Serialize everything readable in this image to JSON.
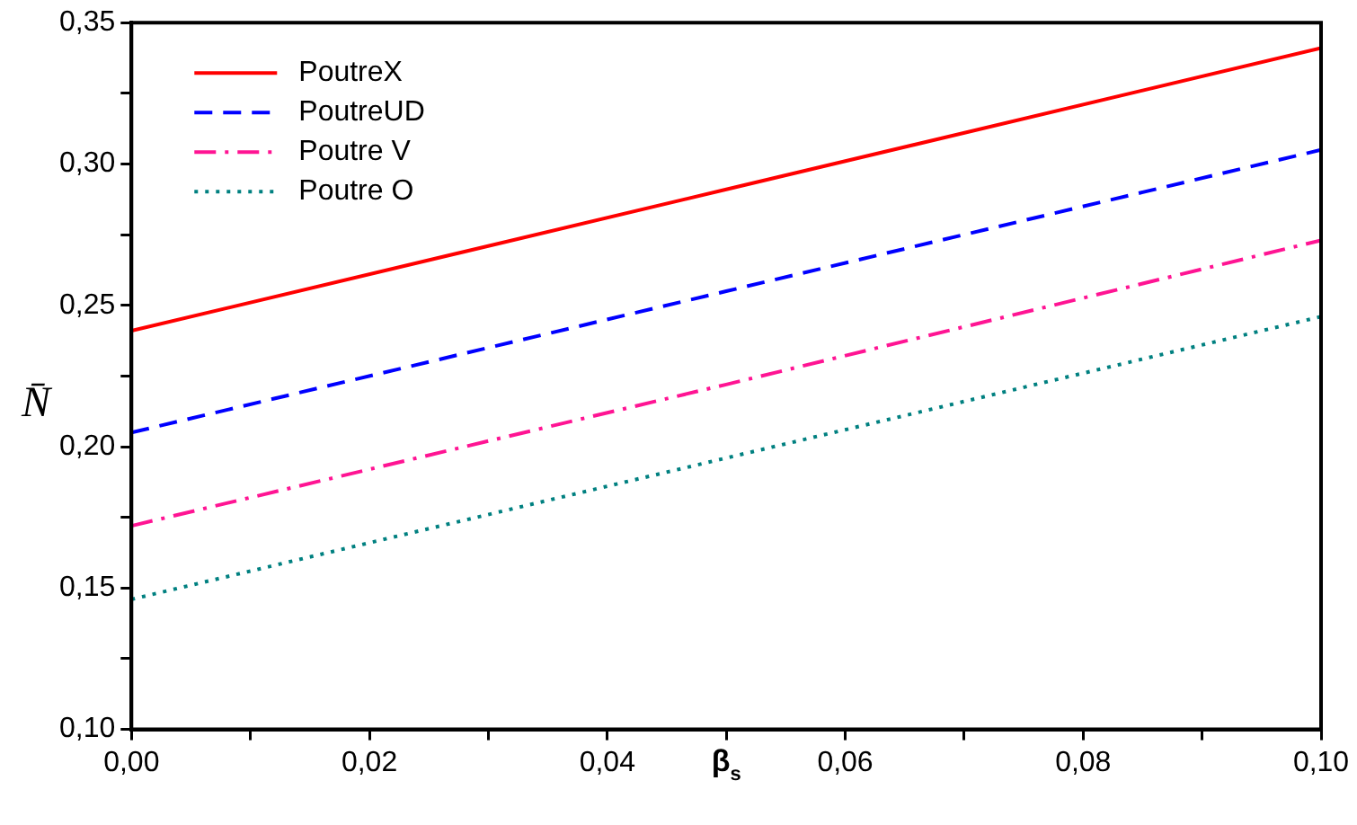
{
  "chart_data": {
    "type": "line",
    "xlabel": "β$_{s}$",
    "ylabel": "N̄",
    "x": [
      0,
      0.05,
      0.1
    ],
    "series": [
      {
        "name": "PoutreX",
        "color": "#ff0000",
        "line_style": "solid",
        "values": [
          0.241,
          0.291,
          0.341
        ]
      },
      {
        "name": "PoutreUD",
        "color": "#0000ff",
        "line_style": "dashed",
        "values": [
          0.205,
          0.255,
          0.305
        ]
      },
      {
        "name": "Poutre V",
        "color": "#ff1493",
        "line_style": "dashdot",
        "values": [
          0.172,
          0.222,
          0.273
        ]
      },
      {
        "name": "Poutre O",
        "color": "#008080",
        "line_style": "dotted",
        "values": [
          0.146,
          0.196,
          0.246
        ]
      }
    ],
    "xlim": [
      0,
      0.1
    ],
    "xticks": [
      {
        "value": 0,
        "label": "0,00"
      },
      {
        "value": 0.01,
        "label": null
      },
      {
        "value": 0.02,
        "label": "0,02"
      },
      {
        "value": 0.03,
        "label": null
      },
      {
        "value": 0.04,
        "label": "0,04"
      },
      {
        "value": 0.05,
        "label": null
      },
      {
        "value": 0.06,
        "label": "0,06"
      },
      {
        "value": 0.07,
        "label": null
      },
      {
        "value": 0.08,
        "label": "0,08"
      },
      {
        "value": 0.09,
        "label": null
      },
      {
        "value": 0.1,
        "label": "0,10"
      }
    ],
    "ylim": [
      0.1,
      0.35
    ],
    "yticks": [
      {
        "value": 0.1,
        "label": "0,10"
      },
      {
        "value": 0.125,
        "label": null
      },
      {
        "value": 0.15,
        "label": "0,15"
      },
      {
        "value": 0.175,
        "label": null
      },
      {
        "value": 0.2,
        "label": "0,20"
      },
      {
        "value": 0.225,
        "label": null
      },
      {
        "value": 0.25,
        "label": "0,25"
      },
      {
        "value": 0.275,
        "label": null
      },
      {
        "value": 0.3,
        "label": "0,30"
      },
      {
        "value": 0.325,
        "label": null
      },
      {
        "value": 0.35,
        "label": "0,35"
      }
    ],
    "grid": false,
    "legend": "top left",
    "marker": "none"
  }
}
